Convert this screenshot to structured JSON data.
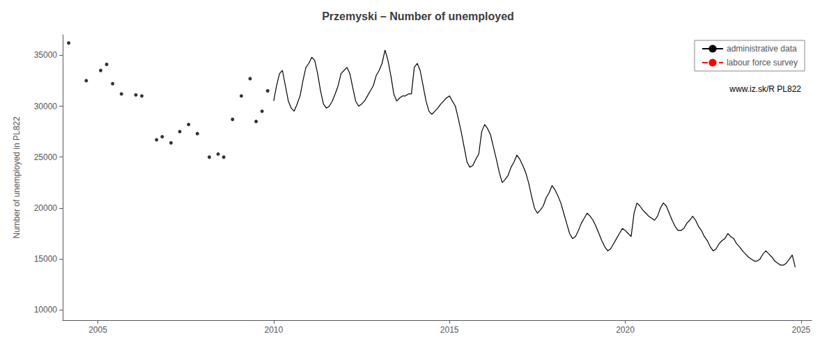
{
  "chart_data": {
    "type": "line",
    "title": "Przemyski – Number of unemployed",
    "ylabel": "Number of unemployed in PL822",
    "xlim": [
      2004.0,
      2025.3
    ],
    "ylim": [
      9000,
      37000
    ],
    "xticks": [
      2005,
      2010,
      2015,
      2020,
      2025
    ],
    "yticks": [
      10000,
      15000,
      20000,
      25000,
      30000,
      35000
    ],
    "grid": false,
    "legend": "upper right",
    "annotation": "www.iz.sk/R PL822",
    "series": [
      {
        "name": "administrative data",
        "type": "line",
        "color": "#000000",
        "line_style": "solid",
        "x": [
          2010.0,
          2010.083,
          2010.167,
          2010.25,
          2010.333,
          2010.417,
          2010.5,
          2010.583,
          2010.667,
          2010.75,
          2010.833,
          2010.917,
          2011.0,
          2011.083,
          2011.167,
          2011.25,
          2011.333,
          2011.417,
          2011.5,
          2011.583,
          2011.667,
          2011.75,
          2011.833,
          2011.917,
          2012.0,
          2012.083,
          2012.167,
          2012.25,
          2012.333,
          2012.417,
          2012.5,
          2012.583,
          2012.667,
          2012.75,
          2012.833,
          2012.917,
          2013.0,
          2013.083,
          2013.167,
          2013.25,
          2013.333,
          2013.417,
          2013.5,
          2013.583,
          2013.667,
          2013.75,
          2013.833,
          2013.917,
          2014.0,
          2014.083,
          2014.167,
          2014.25,
          2014.333,
          2014.417,
          2014.5,
          2014.583,
          2014.667,
          2014.75,
          2014.833,
          2014.917,
          2015.0,
          2015.083,
          2015.167,
          2015.25,
          2015.333,
          2015.417,
          2015.5,
          2015.583,
          2015.667,
          2015.75,
          2015.833,
          2015.917,
          2016.0,
          2016.083,
          2016.167,
          2016.25,
          2016.333,
          2016.417,
          2016.5,
          2016.583,
          2016.667,
          2016.75,
          2016.833,
          2016.917,
          2017.0,
          2017.083,
          2017.167,
          2017.25,
          2017.333,
          2017.417,
          2017.5,
          2017.583,
          2017.667,
          2017.75,
          2017.833,
          2017.917,
          2018.0,
          2018.083,
          2018.167,
          2018.25,
          2018.333,
          2018.417,
          2018.5,
          2018.583,
          2018.667,
          2018.75,
          2018.833,
          2018.917,
          2019.0,
          2019.083,
          2019.167,
          2019.25,
          2019.333,
          2019.417,
          2019.5,
          2019.583,
          2019.667,
          2019.75,
          2019.833,
          2019.917,
          2020.0,
          2020.083,
          2020.167,
          2020.25,
          2020.333,
          2020.417,
          2020.5,
          2020.583,
          2020.667,
          2020.75,
          2020.833,
          2020.917,
          2021.0,
          2021.083,
          2021.167,
          2021.25,
          2021.333,
          2021.417,
          2021.5,
          2021.583,
          2021.667,
          2021.75,
          2021.833,
          2021.917,
          2022.0,
          2022.083,
          2022.167,
          2022.25,
          2022.333,
          2022.417,
          2022.5,
          2022.583,
          2022.667,
          2022.75,
          2022.833,
          2022.917,
          2023.0,
          2023.083,
          2023.167,
          2023.25,
          2023.333,
          2023.417,
          2023.5,
          2023.583,
          2023.667,
          2023.75,
          2023.833,
          2023.917,
          2024.0,
          2024.083,
          2024.167,
          2024.25,
          2024.333,
          2024.417,
          2024.5,
          2024.583,
          2024.667,
          2024.75,
          2024.833
        ],
        "values": [
          30500,
          32000,
          33200,
          33500,
          32000,
          30500,
          29800,
          29500,
          30200,
          31000,
          32500,
          33800,
          34200,
          34800,
          34500,
          33200,
          31500,
          30200,
          29800,
          30000,
          30500,
          31200,
          32000,
          33200,
          33500,
          33800,
          33200,
          31800,
          30500,
          30000,
          30200,
          30500,
          31000,
          31500,
          32000,
          33000,
          33500,
          34200,
          35500,
          34500,
          33000,
          31200,
          30500,
          30800,
          31000,
          31000,
          31200,
          31200,
          33800,
          34200,
          33500,
          32000,
          30500,
          29500,
          29200,
          29500,
          29800,
          30200,
          30500,
          30800,
          31000,
          30500,
          30000,
          28800,
          27500,
          26000,
          24500,
          24000,
          24200,
          24800,
          25300,
          27500,
          28200,
          27800,
          27200,
          26000,
          24800,
          23500,
          22500,
          22800,
          23200,
          24000,
          24500,
          25200,
          24800,
          24200,
          23500,
          22500,
          21200,
          20000,
          19500,
          19800,
          20200,
          21000,
          21500,
          22200,
          21800,
          21200,
          20500,
          19500,
          18500,
          17500,
          17000,
          17200,
          17800,
          18500,
          19000,
          19500,
          19200,
          18800,
          18200,
          17500,
          16800,
          16200,
          15800,
          16000,
          16500,
          17000,
          17500,
          18000,
          17800,
          17500,
          17200,
          19500,
          20500,
          20200,
          19800,
          19500,
          19200,
          19000,
          18800,
          19200,
          20000,
          20500,
          20200,
          19500,
          18800,
          18200,
          17800,
          17800,
          18000,
          18500,
          18800,
          19200,
          18800,
          18200,
          17800,
          17200,
          16800,
          16200,
          15800,
          16000,
          16500,
          16800,
          17000,
          17500,
          17200,
          17000,
          16500,
          16200,
          15800,
          15500,
          15200,
          15000,
          14800,
          14800,
          15000,
          15500,
          15800,
          15500,
          15200,
          14800,
          14600,
          14400,
          14400,
          14600,
          15000,
          15400,
          14200
        ]
      },
      {
        "name": "administrative data",
        "type": "scatter",
        "color": "#000000",
        "marker": "circle",
        "x": [
          2004.17,
          2004.67,
          2005.08,
          2005.25,
          2005.42,
          2005.67,
          2006.08,
          2006.25,
          2006.67,
          2006.83,
          2007.08,
          2007.33,
          2007.58,
          2007.83,
          2008.17,
          2008.42,
          2008.58,
          2008.83,
          2009.08,
          2009.33,
          2009.5,
          2009.67,
          2009.83
        ],
        "values": [
          36200,
          32500,
          33500,
          34100,
          32200,
          31200,
          31100,
          31000,
          26700,
          27000,
          26400,
          27500,
          28200,
          27300,
          25000,
          25300,
          25000,
          28700,
          31000,
          32700,
          28500,
          29500,
          31500
        ]
      },
      {
        "name": "labour force survey",
        "type": "line",
        "color": "#ff0000",
        "line_style": "dashed",
        "x": [],
        "values": []
      }
    ]
  }
}
